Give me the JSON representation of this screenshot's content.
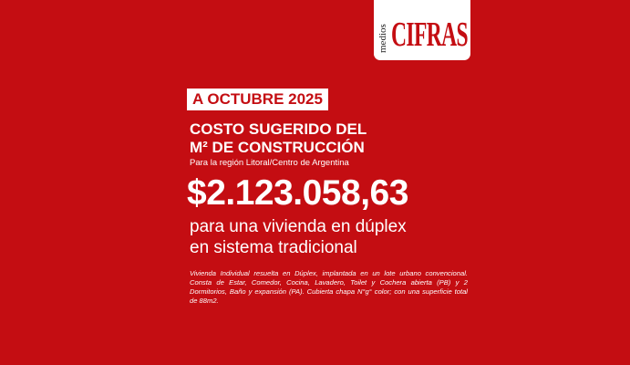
{
  "logo": {
    "small": "medios",
    "brand": "CIFRAS"
  },
  "badge": "A OCTUBRE 2025",
  "title": {
    "line1": "COSTO SUGERIDO DEL",
    "line2": "M² DE CONSTRUCCIÓN"
  },
  "subtitle": "Para la región Litoral/Centro de Argentina",
  "price": "$2.123.058,63",
  "description": {
    "line1": "para una vivienda en dúplex",
    "line2": "en sistema tradicional"
  },
  "note": "Vivienda Individual resuelta en Dúplex, implantada en un lote urbano convencional. Consta de Estar, Comedor, Cocina, Lavadero, Toilet y Cochera abierta (PB) y 2 Dormitorios, Baño y expansión (PA). Cubierta chapa N°g° color; con una superficie total de 88m2.",
  "colors": {
    "background": "#c40d12",
    "text": "#ffffff"
  }
}
